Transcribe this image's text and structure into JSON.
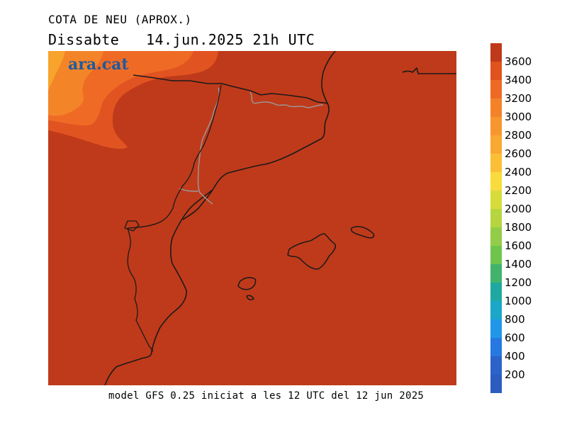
{
  "map": {
    "title": "COTA DE NEU (APROX.)",
    "subtitle": "Dissabte   14.jun.2025 21h UTC",
    "brand": "ara.cat",
    "footer": "model GFS 0.25 iniciat a les 12 UTC del 12 jun 2025",
    "colors": {
      "base_field": "#bf3a1a",
      "field_3400": "#e15421",
      "field_3200": "#ef6b25",
      "field_3000": "#f48428",
      "field_2800": "#f7a32c",
      "coastline": "#1a1a1a",
      "border": "#9a9a9a"
    }
  },
  "legend": {
    "labels": [
      "3600",
      "3400",
      "3200",
      "3000",
      "2800",
      "2600",
      "2400",
      "2200",
      "2000",
      "1800",
      "1600",
      "1400",
      "1200",
      "1000",
      "800",
      "600",
      "400",
      "200"
    ],
    "colors": [
      "#bf3a1a",
      "#e0531f",
      "#ee6a24",
      "#f38229",
      "#f7962e",
      "#f9a832",
      "#fbbf37",
      "#f7dc3c",
      "#d7dc3b",
      "#b6d541",
      "#93cd48",
      "#6fc54c",
      "#42b36c",
      "#1ea8a0",
      "#1ca6c8",
      "#2196e9",
      "#2579e0",
      "#2b63ca",
      "#2c5cbf"
    ]
  }
}
